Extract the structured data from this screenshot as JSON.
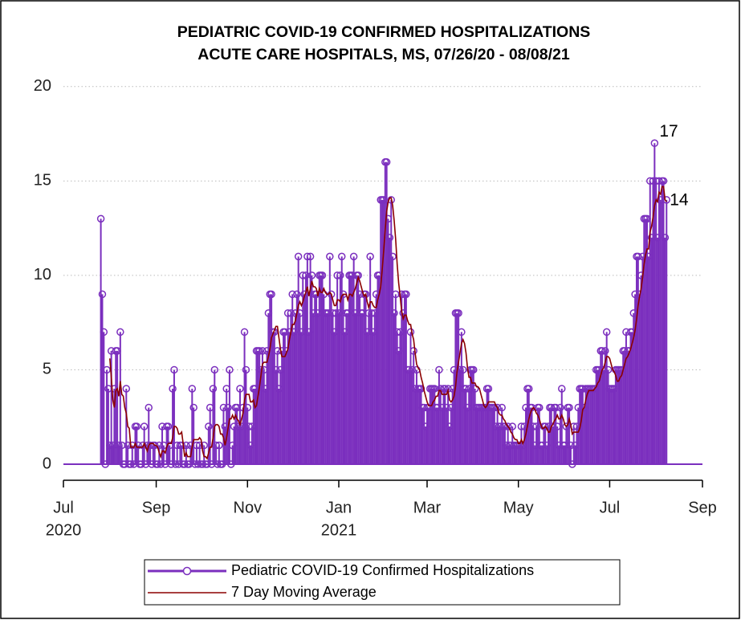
{
  "chart_data": {
    "type": "stem",
    "title": [
      "PEDIATRIC COVID-19 CONFIRMED HOSPITALIZATIONS",
      "ACUTE CARE HOSPITALS, MS, 07/26/20 - 08/08/21"
    ],
    "xlim": [
      "2020-07-01",
      "2021-09-01"
    ],
    "xticks": [
      {
        "value": "2020-07-01",
        "label": [
          "Jul",
          "2020"
        ]
      },
      {
        "value": "2020-09-01",
        "label": [
          "Sep"
        ]
      },
      {
        "value": "2020-11-01",
        "label": [
          "Nov"
        ]
      },
      {
        "value": "2021-01-01",
        "label": [
          "Jan",
          "2021"
        ]
      },
      {
        "value": "2021-03-01",
        "label": [
          "Mar"
        ]
      },
      {
        "value": "2021-05-01",
        "label": [
          "May"
        ]
      },
      {
        "value": "2021-07-01",
        "label": [
          "Jul"
        ]
      },
      {
        "value": "2021-09-01",
        "label": [
          "Sep"
        ]
      }
    ],
    "ylim": [
      -0.85,
      20.5
    ],
    "yticks": [
      0,
      5,
      10,
      15,
      20
    ],
    "grid": true,
    "legend": "bottom",
    "annotations": [
      {
        "index": 370,
        "series": 0
      },
      {
        "index": 378,
        "series": 0
      }
    ],
    "x": [
      "2020-07-26",
      "2020-07-27",
      "2020-07-28",
      "2020-07-29",
      "2020-07-30",
      "2020-07-31",
      "2020-08-01",
      "2020-08-02",
      "2020-08-03",
      "2020-08-04",
      "2020-08-05",
      "2020-08-06",
      "2020-08-07",
      "2020-08-08",
      "2020-08-09",
      "2020-08-10",
      "2020-08-11",
      "2020-08-12",
      "2020-08-13",
      "2020-08-14",
      "2020-08-15",
      "2020-08-16",
      "2020-08-17",
      "2020-08-18",
      "2020-08-19",
      "2020-08-20",
      "2020-08-21",
      "2020-08-22",
      "2020-08-23",
      "2020-08-24",
      "2020-08-25",
      "2020-08-26",
      "2020-08-27",
      "2020-08-28",
      "2020-08-29",
      "2020-08-30",
      "2020-08-31",
      "2020-09-01",
      "2020-09-02",
      "2020-09-03",
      "2020-09-04",
      "2020-09-05",
      "2020-09-06",
      "2020-09-07",
      "2020-09-08",
      "2020-09-09",
      "2020-09-10",
      "2020-09-11",
      "2020-09-12",
      "2020-09-13",
      "2020-09-14",
      "2020-09-15",
      "2020-09-16",
      "2020-09-17",
      "2020-09-18",
      "2020-09-19",
      "2020-09-20",
      "2020-09-21",
      "2020-09-22",
      "2020-09-23",
      "2020-09-24",
      "2020-09-25",
      "2020-09-26",
      "2020-09-27",
      "2020-09-28",
      "2020-09-29",
      "2020-09-30",
      "2020-10-01",
      "2020-10-02",
      "2020-10-03",
      "2020-10-04",
      "2020-10-05",
      "2020-10-06",
      "2020-10-07",
      "2020-10-08",
      "2020-10-09",
      "2020-10-10",
      "2020-10-11",
      "2020-10-12",
      "2020-10-13",
      "2020-10-14",
      "2020-10-15",
      "2020-10-16",
      "2020-10-17",
      "2020-10-18",
      "2020-10-19",
      "2020-10-20",
      "2020-10-21",
      "2020-10-22",
      "2020-10-23",
      "2020-10-24",
      "2020-10-25",
      "2020-10-26",
      "2020-10-27",
      "2020-10-28",
      "2020-10-29",
      "2020-10-30",
      "2020-10-31",
      "2020-11-01",
      "2020-11-02",
      "2020-11-03",
      "2020-11-04",
      "2020-11-05",
      "2020-11-06",
      "2020-11-07",
      "2020-11-08",
      "2020-11-09",
      "2020-11-10",
      "2020-11-11",
      "2020-11-12",
      "2020-11-13",
      "2020-11-14",
      "2020-11-15",
      "2020-11-16",
      "2020-11-17",
      "2020-11-18",
      "2020-11-19",
      "2020-11-20",
      "2020-11-21",
      "2020-11-22",
      "2020-11-23",
      "2020-11-24",
      "2020-11-25",
      "2020-11-26",
      "2020-11-27",
      "2020-11-28",
      "2020-11-29",
      "2020-11-30",
      "2020-12-01",
      "2020-12-02",
      "2020-12-03",
      "2020-12-04",
      "2020-12-05",
      "2020-12-06",
      "2020-12-07",
      "2020-12-08",
      "2020-12-09",
      "2020-12-10",
      "2020-12-11",
      "2020-12-12",
      "2020-12-13",
      "2020-12-14",
      "2020-12-15",
      "2020-12-16",
      "2020-12-17",
      "2020-12-18",
      "2020-12-19",
      "2020-12-20",
      "2020-12-21",
      "2020-12-22",
      "2020-12-23",
      "2020-12-24",
      "2020-12-25",
      "2020-12-26",
      "2020-12-27",
      "2020-12-28",
      "2020-12-29",
      "2020-12-30",
      "2020-12-31",
      "2021-01-01",
      "2021-01-02",
      "2021-01-03",
      "2021-01-04",
      "2021-01-05",
      "2021-01-06",
      "2021-01-07",
      "2021-01-08",
      "2021-01-09",
      "2021-01-10",
      "2021-01-11",
      "2021-01-12",
      "2021-01-13",
      "2021-01-14",
      "2021-01-15",
      "2021-01-16",
      "2021-01-17",
      "2021-01-18",
      "2021-01-19",
      "2021-01-20",
      "2021-01-21",
      "2021-01-22",
      "2021-01-23",
      "2021-01-24",
      "2021-01-25",
      "2021-01-26",
      "2021-01-27",
      "2021-01-28",
      "2021-01-29",
      "2021-01-30",
      "2021-01-31",
      "2021-02-01",
      "2021-02-02",
      "2021-02-03",
      "2021-02-04",
      "2021-02-05",
      "2021-02-06",
      "2021-02-07",
      "2021-02-08",
      "2021-02-09",
      "2021-02-10",
      "2021-02-11",
      "2021-02-12",
      "2021-02-13",
      "2021-02-14",
      "2021-02-15",
      "2021-02-16",
      "2021-02-17",
      "2021-02-18",
      "2021-02-19",
      "2021-02-20",
      "2021-02-21",
      "2021-02-22",
      "2021-02-23",
      "2021-02-24",
      "2021-02-25",
      "2021-02-26",
      "2021-02-27",
      "2021-02-28",
      "2021-03-01",
      "2021-03-02",
      "2021-03-03",
      "2021-03-04",
      "2021-03-05",
      "2021-03-06",
      "2021-03-07",
      "2021-03-08",
      "2021-03-09",
      "2021-03-10",
      "2021-03-11",
      "2021-03-12",
      "2021-03-13",
      "2021-03-14",
      "2021-03-15",
      "2021-03-16",
      "2021-03-17",
      "2021-03-18",
      "2021-03-19",
      "2021-03-20",
      "2021-03-21",
      "2021-03-22",
      "2021-03-23",
      "2021-03-24",
      "2021-03-25",
      "2021-03-26",
      "2021-03-27",
      "2021-03-28",
      "2021-03-29",
      "2021-03-30",
      "2021-03-31",
      "2021-04-01",
      "2021-04-02",
      "2021-04-03",
      "2021-04-04",
      "2021-04-05",
      "2021-04-06",
      "2021-04-07",
      "2021-04-08",
      "2021-04-09",
      "2021-04-10",
      "2021-04-11",
      "2021-04-12",
      "2021-04-13",
      "2021-04-14",
      "2021-04-15",
      "2021-04-16",
      "2021-04-17",
      "2021-04-18",
      "2021-04-19",
      "2021-04-20",
      "2021-04-21",
      "2021-04-22",
      "2021-04-23",
      "2021-04-24",
      "2021-04-25",
      "2021-04-26",
      "2021-04-27",
      "2021-04-28",
      "2021-04-29",
      "2021-04-30",
      "2021-05-01",
      "2021-05-02",
      "2021-05-03",
      "2021-05-04",
      "2021-05-05",
      "2021-05-06",
      "2021-05-07",
      "2021-05-08",
      "2021-05-09",
      "2021-05-10",
      "2021-05-11",
      "2021-05-12",
      "2021-05-13",
      "2021-05-14",
      "2021-05-15",
      "2021-05-16",
      "2021-05-17",
      "2021-05-18",
      "2021-05-19",
      "2021-05-20",
      "2021-05-21",
      "2021-05-22",
      "2021-05-23",
      "2021-05-24",
      "2021-05-25",
      "2021-05-26",
      "2021-05-27",
      "2021-05-28",
      "2021-05-29",
      "2021-05-30",
      "2021-05-31",
      "2021-06-01",
      "2021-06-02",
      "2021-06-03",
      "2021-06-04",
      "2021-06-05",
      "2021-06-06",
      "2021-06-07",
      "2021-06-08",
      "2021-06-09",
      "2021-06-10",
      "2021-06-11",
      "2021-06-12",
      "2021-06-13",
      "2021-06-14",
      "2021-06-15",
      "2021-06-16",
      "2021-06-17",
      "2021-06-18",
      "2021-06-19",
      "2021-06-20",
      "2021-06-21",
      "2021-06-22",
      "2021-06-23",
      "2021-06-24",
      "2021-06-25",
      "2021-06-26",
      "2021-06-27",
      "2021-06-28",
      "2021-06-29",
      "2021-06-30",
      "2021-07-01",
      "2021-07-02",
      "2021-07-03",
      "2021-07-04",
      "2021-07-05",
      "2021-07-06",
      "2021-07-07",
      "2021-07-08",
      "2021-07-09",
      "2021-07-10",
      "2021-07-11",
      "2021-07-12",
      "2021-07-13",
      "2021-07-14",
      "2021-07-15",
      "2021-07-16",
      "2021-07-17",
      "2021-07-18",
      "2021-07-19",
      "2021-07-20",
      "2021-07-21",
      "2021-07-22",
      "2021-07-23",
      "2021-07-24",
      "2021-07-25",
      "2021-07-26",
      "2021-07-27",
      "2021-07-28",
      "2021-07-29",
      "2021-07-30",
      "2021-07-31",
      "2021-08-01",
      "2021-08-02",
      "2021-08-03",
      "2021-08-04",
      "2021-08-05",
      "2021-08-06",
      "2021-08-07",
      "2021-08-08"
    ],
    "series": [
      {
        "name": "Pediatric COVID-19 Confirmed Hospitalizations",
        "color": "#7b2fbe",
        "values": [
          13,
          9,
          7,
          0,
          5,
          4,
          1,
          6,
          1,
          4,
          6,
          6,
          1,
          7,
          1,
          0,
          0,
          4,
          1,
          0,
          0,
          1,
          0,
          2,
          2,
          1,
          0,
          0,
          1,
          2,
          0,
          1,
          3,
          1,
          0,
          1,
          1,
          0,
          0,
          1,
          0,
          2,
          1,
          0,
          2,
          2,
          1,
          0,
          4,
          5,
          0,
          1,
          0,
          1,
          1,
          0,
          0,
          1,
          0,
          0,
          1,
          4,
          3,
          0,
          1,
          0,
          1,
          0,
          0,
          1,
          0,
          0,
          2,
          3,
          0,
          4,
          5,
          1,
          0,
          1,
          0,
          0,
          3,
          2,
          4,
          3,
          5,
          0,
          1,
          2,
          3,
          3,
          2,
          4,
          2,
          3,
          7,
          5,
          3,
          2,
          1,
          2,
          4,
          4,
          6,
          6,
          6,
          5,
          6,
          5,
          4,
          6,
          8,
          9,
          9,
          7,
          7,
          5,
          6,
          4,
          5,
          6,
          7,
          7,
          6,
          8,
          7,
          8,
          9,
          7,
          8,
          9,
          11,
          8,
          7,
          10,
          9,
          10,
          11,
          7,
          11,
          10,
          8,
          9,
          9,
          8,
          10,
          10,
          10,
          9,
          8,
          8,
          8,
          11,
          9,
          8,
          7,
          8,
          10,
          8,
          10,
          11,
          9,
          7,
          8,
          8,
          10,
          10,
          10,
          11,
          8,
          10,
          10,
          9,
          8,
          8,
          9,
          9,
          7,
          8,
          11,
          8,
          7,
          8,
          9,
          10,
          10,
          14,
          14,
          14,
          16,
          16,
          13,
          12,
          14,
          11,
          8,
          9,
          7,
          6,
          7,
          9,
          8,
          9,
          9,
          5,
          5,
          7,
          5,
          6,
          4,
          5,
          4,
          4,
          4,
          3,
          3,
          2,
          3,
          3,
          4,
          4,
          4,
          4,
          3,
          3,
          5,
          4,
          3,
          4,
          4,
          3,
          4,
          2,
          3,
          4,
          5,
          8,
          8,
          8,
          5,
          7,
          5,
          4,
          4,
          3,
          4,
          5,
          5,
          5,
          4,
          3,
          3,
          3,
          3,
          3,
          3,
          3,
          4,
          4,
          3,
          3,
          3,
          3,
          2,
          3,
          2,
          2,
          3,
          2,
          2,
          1,
          2,
          1,
          1,
          2,
          1,
          1,
          1,
          1,
          1,
          2,
          1,
          2,
          3,
          4,
          4,
          3,
          3,
          2,
          1,
          2,
          3,
          3,
          1,
          1,
          2,
          2,
          1,
          2,
          3,
          3,
          2,
          3,
          3,
          2,
          1,
          3,
          4,
          1,
          1,
          2,
          3,
          3,
          1,
          0,
          2,
          1,
          2,
          3,
          4,
          4,
          4,
          3,
          4,
          4,
          4,
          4,
          4,
          4,
          4,
          5,
          5,
          5,
          6,
          6,
          5,
          6,
          7,
          5,
          4,
          4,
          4,
          4,
          5,
          5,
          5,
          5,
          5,
          6,
          6,
          7,
          6,
          6,
          7,
          7,
          8,
          9,
          11,
          11,
          9,
          10,
          11,
          13,
          13,
          13,
          11,
          15,
          12,
          15,
          17,
          15,
          12,
          15,
          14,
          15,
          15,
          12,
          14
        ]
      },
      {
        "name": "7 Day Moving Average",
        "color": "#8b0000",
        "type": "line",
        "values": [
          null,
          null,
          null,
          null,
          null,
          null,
          5.6,
          4.6,
          3.4,
          3.0,
          3.9,
          4.0,
          3.6,
          4.4,
          3.7,
          3.6,
          3.0,
          2.7,
          2.0,
          1.9,
          0.9,
          0.9,
          0.9,
          1.1,
          0.9,
          0.9,
          0.9,
          0.9,
          0.9,
          1.1,
          0.9,
          0.7,
          1.0,
          1.1,
          1.1,
          1.1,
          1.0,
          1.0,
          0.9,
          0.6,
          0.4,
          0.7,
          0.7,
          0.6,
          0.9,
          1.1,
          1.1,
          1.1,
          1.4,
          2.0,
          2.0,
          1.9,
          1.6,
          1.6,
          1.7,
          1.1,
          0.4,
          0.6,
          0.4,
          0.4,
          0.4,
          0.9,
          1.3,
          1.3,
          1.3,
          1.3,
          1.4,
          1.3,
          0.7,
          0.4,
          0.4,
          0.3,
          0.6,
          0.9,
          0.9,
          1.4,
          2.0,
          2.1,
          2.1,
          2.0,
          1.6,
          1.6,
          1.4,
          1.0,
          1.4,
          1.9,
          2.4,
          2.4,
          2.6,
          2.4,
          2.6,
          2.4,
          2.3,
          2.1,
          2.4,
          2.7,
          3.4,
          3.7,
          3.7,
          3.7,
          3.3,
          3.3,
          3.4,
          3.0,
          3.1,
          3.6,
          4.1,
          4.7,
          5.3,
          5.4,
          5.4,
          5.4,
          5.7,
          6.1,
          6.7,
          6.9,
          7.1,
          7.3,
          7.3,
          6.7,
          6.1,
          5.7,
          5.7,
          5.7,
          5.9,
          6.1,
          6.6,
          7.0,
          7.4,
          7.4,
          7.6,
          8.0,
          8.4,
          8.6,
          8.4,
          8.6,
          8.9,
          9.1,
          9.4,
          8.9,
          9.3,
          9.7,
          9.4,
          9.4,
          9.3,
          8.9,
          9.3,
          9.1,
          9.1,
          9.3,
          9.1,
          9.0,
          9.0,
          9.1,
          9.0,
          8.7,
          8.4,
          8.4,
          8.7,
          8.7,
          8.6,
          8.9,
          9.0,
          9.0,
          9.0,
          8.7,
          9.0,
          9.0,
          8.9,
          9.1,
          9.3,
          9.6,
          9.9,
          9.7,
          9.4,
          9.1,
          8.9,
          9.0,
          8.6,
          8.3,
          8.6,
          8.6,
          8.4,
          8.3,
          8.3,
          8.7,
          9.0,
          9.4,
          10.3,
          11.3,
          12.4,
          13.4,
          13.9,
          14.1,
          14.1,
          13.7,
          12.9,
          11.9,
          10.6,
          9.6,
          8.9,
          8.1,
          7.7,
          7.9,
          7.9,
          7.6,
          7.4,
          7.4,
          6.9,
          6.6,
          5.9,
          5.3,
          5.1,
          5.0,
          4.6,
          4.3,
          3.9,
          3.6,
          3.3,
          3.1,
          3.1,
          3.1,
          3.3,
          3.4,
          3.6,
          3.6,
          3.9,
          3.9,
          3.7,
          3.7,
          3.7,
          3.7,
          3.9,
          3.4,
          3.3,
          3.4,
          3.6,
          4.1,
          4.9,
          5.4,
          5.9,
          6.4,
          6.6,
          6.4,
          5.9,
          5.1,
          4.6,
          4.6,
          4.3,
          4.3,
          4.3,
          4.1,
          4.1,
          4.0,
          3.7,
          3.4,
          3.1,
          3.0,
          3.1,
          3.3,
          3.3,
          3.3,
          3.3,
          3.3,
          3.1,
          3.0,
          2.7,
          2.6,
          2.6,
          2.4,
          2.3,
          2.1,
          2.0,
          1.9,
          1.7,
          1.6,
          1.4,
          1.3,
          1.3,
          1.1,
          1.1,
          1.3,
          1.1,
          1.3,
          1.6,
          2.0,
          2.4,
          2.7,
          2.9,
          3.0,
          2.9,
          2.7,
          2.6,
          2.4,
          2.1,
          1.9,
          1.9,
          2.0,
          1.9,
          1.7,
          1.7,
          2.0,
          2.1,
          2.3,
          2.4,
          2.6,
          2.4,
          2.4,
          2.6,
          2.4,
          2.1,
          2.0,
          2.1,
          2.4,
          2.1,
          1.6,
          1.7,
          1.7,
          1.7,
          1.7,
          1.9,
          2.3,
          2.9,
          3.0,
          3.4,
          3.7,
          3.9,
          3.9,
          3.9,
          3.9,
          4.0,
          4.1,
          4.3,
          4.4,
          4.7,
          5.0,
          5.1,
          5.4,
          5.7,
          5.7,
          5.6,
          5.3,
          5.0,
          4.9,
          4.7,
          4.4,
          4.4,
          4.6,
          4.7,
          5.0,
          5.3,
          5.6,
          5.7,
          5.9,
          6.1,
          6.4,
          6.7,
          7.1,
          7.7,
          8.4,
          8.9,
          9.3,
          9.9,
          10.6,
          11.1,
          11.4,
          11.4,
          12.3,
          12.6,
          13.1,
          13.7,
          14.0,
          13.9,
          14.4,
          14.3,
          14.7,
          14.7,
          14.0,
          13.9
        ]
      }
    ]
  }
}
